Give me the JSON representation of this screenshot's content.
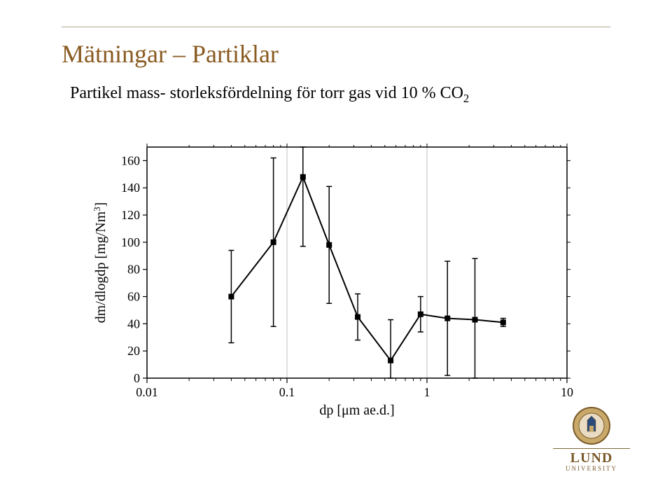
{
  "title_text": "Mätningar – Partiklar",
  "title_color": "#8a5a21",
  "subtitle_html": "Partikel mass- storleksfördelning för torr gas vid 10 % CO",
  "subtitle_sub": "2",
  "chart": {
    "type": "line-scatter-errorbars",
    "xlabel": "dp [μm ae.d.]",
    "ylabel": "dm/dlogdp [mg/Nm³]",
    "ylabel_html": "dm/dlogdp [mg/Nm",
    "ylabel_sup": "3",
    "ylabel_tail": "]",
    "x_scale": "log10",
    "xlim": [
      0.01,
      10
    ],
    "x_ticks": [
      0.01,
      0.1,
      1,
      10
    ],
    "x_tick_labels": [
      "0.01",
      "0.1",
      "1",
      "10"
    ],
    "x_minor_ticks": [
      0.02,
      0.03,
      0.04,
      0.05,
      0.06,
      0.07,
      0.08,
      0.09,
      0.2,
      0.3,
      0.4,
      0.5,
      0.6,
      0.7,
      0.8,
      0.9,
      2,
      3,
      4,
      5,
      6,
      7,
      8,
      9
    ],
    "ylim": [
      0,
      170
    ],
    "y_ticks": [
      0,
      20,
      40,
      60,
      80,
      100,
      120,
      140,
      160
    ],
    "y_tick_labels": [
      "0",
      "20",
      "40",
      "60",
      "80",
      "100",
      "120",
      "140",
      "160"
    ],
    "series": {
      "x": [
        0.04,
        0.08,
        0.13,
        0.2,
        0.32,
        0.55,
        0.9,
        1.4,
        2.2,
        3.5
      ],
      "y": [
        60,
        100,
        148,
        98,
        45,
        13,
        47,
        44,
        43,
        41
      ],
      "err": [
        34,
        62,
        51,
        43,
        17,
        30,
        13,
        42,
        45,
        3
      ]
    },
    "style": {
      "bg_color": "#ffffff",
      "axis_color": "#000000",
      "grid_major_color": "#bfbfbf",
      "tick_color": "#000000",
      "tick_font_size": 18,
      "label_font_size": 20,
      "line_color": "#000000",
      "line_width": 2,
      "marker_shape": "square",
      "marker_size": 7,
      "marker_fill": "#000000",
      "errorbar_color": "#000000",
      "errorbar_width": 1.5,
      "errorbar_cap": 8
    }
  },
  "logo": {
    "word": "LUND",
    "sub": "UNIVERSITY",
    "brown": "#7a5a2a",
    "blue": "#2a4a7a"
  }
}
